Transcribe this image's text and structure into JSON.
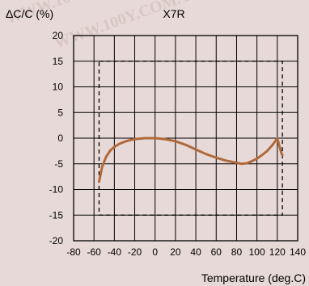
{
  "watermark": "WWW.100Y.COM.TW",
  "chart_data": {
    "type": "line",
    "title": "X7R",
    "ylabel": "ΔC/C (%)",
    "xlabel": "Temperature (deg.C)",
    "xlim": [
      -80,
      140
    ],
    "ylim": [
      -20,
      20
    ],
    "x_ticks": [
      -80,
      -60,
      -40,
      -20,
      0,
      20,
      40,
      60,
      80,
      100,
      120,
      140
    ],
    "y_ticks": [
      20,
      15,
      10,
      5,
      0,
      -5,
      -10,
      -15,
      -20
    ],
    "x_tick_labels": [
      "-80",
      "-60",
      "-40",
      "-20",
      "0",
      "20",
      "40",
      "60",
      "80",
      "100",
      "120",
      "140"
    ],
    "y_tick_labels": [
      "20",
      "15",
      "10",
      "5",
      "0",
      "-5",
      "-10",
      "-15",
      "-20"
    ],
    "grid": true,
    "colors": {
      "curve": "#b0693a",
      "grid": "#000000",
      "spec": "#000000"
    },
    "spec_limits": {
      "x": [
        -55,
        125
      ],
      "y": [
        -15,
        15
      ]
    },
    "series": [
      {
        "x": [
          -55,
          -52,
          -48,
          -44,
          -40,
          -35,
          -30,
          -25,
          -20,
          -15,
          -10,
          -5,
          0,
          5,
          10,
          20,
          30,
          40,
          50,
          60,
          70,
          80,
          85,
          90,
          95,
          100,
          105,
          110,
          115,
          118,
          120,
          122,
          124,
          125
        ],
        "y": [
          -8.5,
          -5.6,
          -3.6,
          -2.4,
          -1.7,
          -1.1,
          -0.7,
          -0.4,
          -0.2,
          -0.1,
          0.0,
          0.0,
          0.0,
          -0.1,
          -0.2,
          -0.6,
          -1.3,
          -2.2,
          -3.1,
          -3.8,
          -4.4,
          -4.8,
          -5.0,
          -4.9,
          -4.5,
          -4.0,
          -3.3,
          -2.5,
          -1.4,
          -0.6,
          0.0,
          -1.5,
          -2.9,
          -3.3
        ]
      }
    ]
  }
}
